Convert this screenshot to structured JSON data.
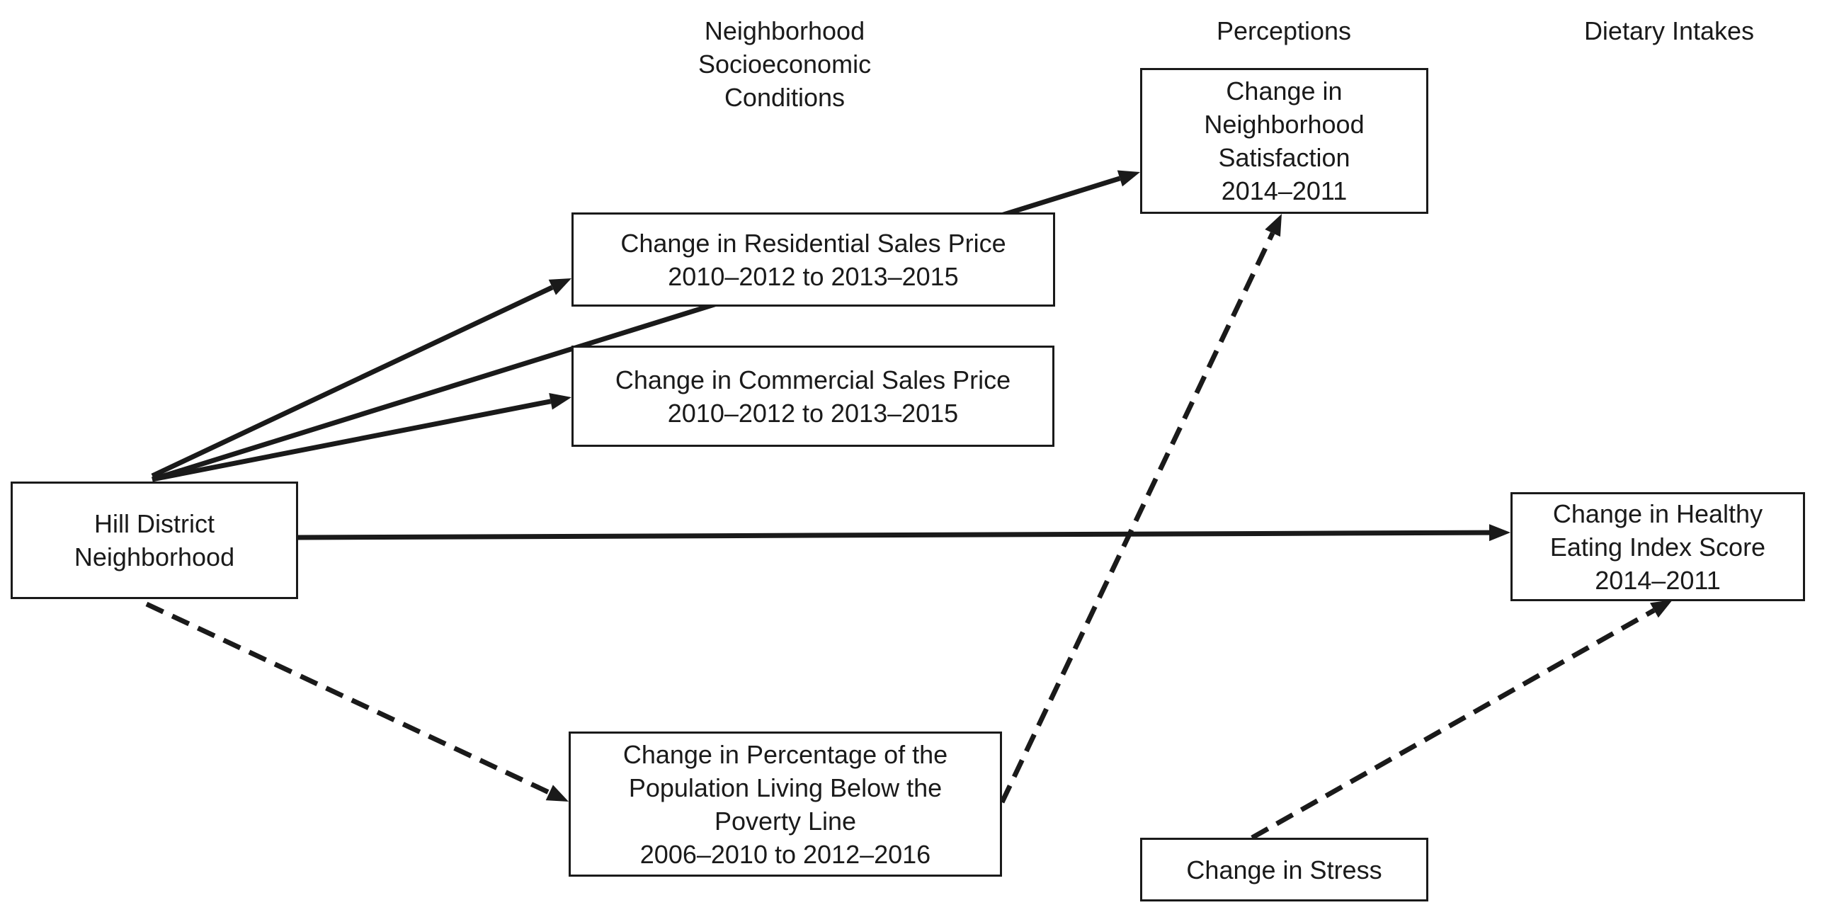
{
  "headers": {
    "socioeconomic": "Neighborhood\nSocioeconomic\nConditions",
    "perceptions": "Perceptions",
    "dietary": "Dietary Intakes"
  },
  "nodes": {
    "hill_district": "Hill District\nNeighborhood",
    "residential": "Change in Residential Sales Price\n2010–2012 to 2013–2015",
    "commercial": "Change in Commercial Sales Price\n2010–2012 to 2013–2015",
    "poverty": "Change in Percentage of the\nPopulation Living Below the\nPoverty Line\n2006–2010 to 2012–2016",
    "satisfaction": "Change in\nNeighborhood\nSatisfaction\n2014–2011",
    "heis": "Change in Healthy\nEating Index Score\n2014–2011",
    "stress": "Change in Stress"
  },
  "edges": [
    {
      "from": "hill_district",
      "to": "residential",
      "style": "solid"
    },
    {
      "from": "hill_district",
      "to": "commercial",
      "style": "solid"
    },
    {
      "from": "hill_district",
      "to": "satisfaction",
      "style": "solid"
    },
    {
      "from": "hill_district",
      "to": "heis",
      "style": "solid"
    },
    {
      "from": "hill_district",
      "to": "poverty",
      "style": "dashed"
    },
    {
      "from": "poverty",
      "to": "satisfaction",
      "style": "dashed"
    },
    {
      "from": "stress",
      "to": "heis",
      "style": "dashed"
    }
  ]
}
